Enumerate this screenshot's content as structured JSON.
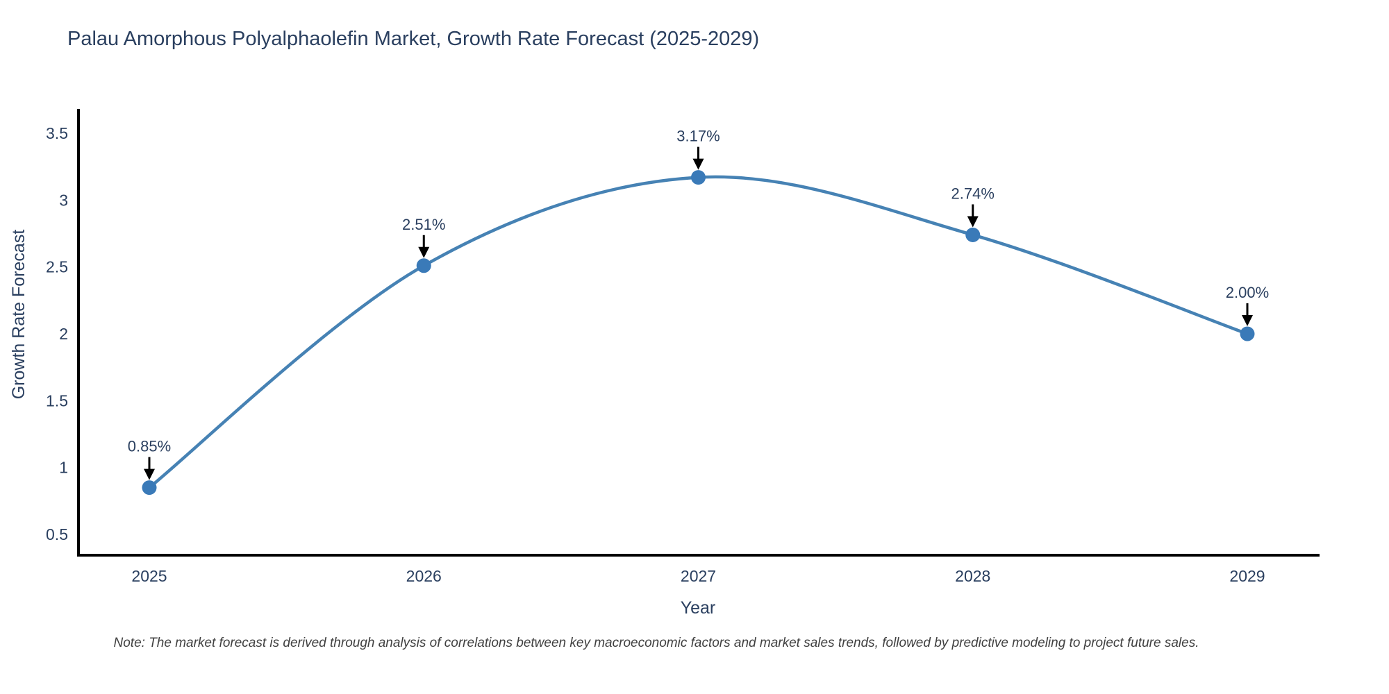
{
  "page": {
    "background": "#ffffff"
  },
  "chart_data": {
    "type": "line",
    "title": "Palau Amorphous Polyalphaolefin Market, Growth Rate Forecast (2025-2029)",
    "xlabel": "Year",
    "ylabel": "Growth Rate Forecast",
    "x": [
      2025,
      2026,
      2027,
      2028,
      2029
    ],
    "series": [
      {
        "name": "Growth Rate Forecast",
        "values": [
          0.85,
          2.51,
          3.17,
          2.74,
          2.0
        ],
        "point_labels": [
          "0.85%",
          "2.51%",
          "3.17%",
          "2.74%",
          "2.00%"
        ]
      }
    ],
    "yticks": [
      0.5,
      1,
      1.5,
      2,
      2.5,
      3,
      3.5
    ],
    "ylim": [
      0.34,
      3.7
    ],
    "line_shape": "spline",
    "grid": false,
    "legend_position": "none",
    "annotations_style": "value label above point with downward black arrow",
    "colors": {
      "line": "#4682b4",
      "marker": "#3a7ab8",
      "axis": "#000000",
      "text": "#2a3f5f",
      "note_text": "#404040",
      "annotation_arrow": "#000000"
    },
    "note": "Note: The market forecast is derived through analysis of correlations between key macroeconomic factors and market sales trends, followed by predictive modeling to project future sales."
  }
}
